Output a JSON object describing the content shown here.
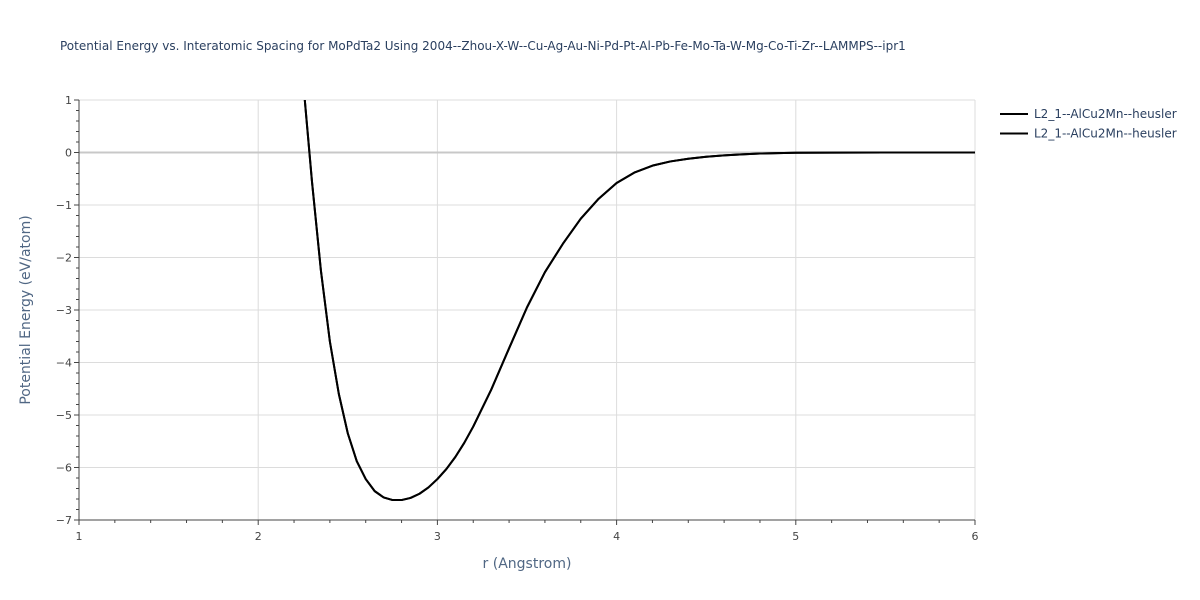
{
  "chart_data": {
    "type": "line",
    "title": "Potential Energy vs. Interatomic Spacing for MoPdTa2 Using 2004--Zhou-X-W--Cu-Ag-Au-Ni-Pd-Pt-Al-Pb-Fe-Mo-Ta-W-Mg-Co-Ti-Zr--LAMMPS--ipr1",
    "xlabel": "r (Angstrom)",
    "ylabel": "Potential Energy (eV/atom)",
    "xlim": [
      1,
      6
    ],
    "ylim": [
      -7,
      1
    ],
    "xticks": [
      1,
      2,
      3,
      4,
      5,
      6
    ],
    "yticks": [
      -7,
      -6,
      -5,
      -4,
      -3,
      -2,
      -1,
      0,
      1
    ],
    "xtick_labels": [
      "1",
      "2",
      "3",
      "4",
      "5",
      "6"
    ],
    "ytick_labels": [
      "−7",
      "−6",
      "−5",
      "−4",
      "−3",
      "−2",
      "−1",
      "0",
      "1"
    ],
    "grid": true,
    "legend_position": "top-right",
    "series": [
      {
        "name": "L2_1--AlCu2Mn--heusler",
        "color": "#000000",
        "x": [
          2.26,
          2.3,
          2.35,
          2.4,
          2.45,
          2.5,
          2.55,
          2.6,
          2.65,
          2.7,
          2.75,
          2.8,
          2.85,
          2.9,
          2.95,
          3.0,
          3.05,
          3.1,
          3.15,
          3.2,
          3.3,
          3.4,
          3.5,
          3.6,
          3.7,
          3.8,
          3.9,
          4.0,
          4.1,
          4.2,
          4.3,
          4.4,
          4.5,
          4.6,
          4.7,
          4.8,
          4.9,
          5.0,
          5.2,
          5.5,
          6.0
        ],
        "y": [
          1.0,
          -0.55,
          -2.25,
          -3.6,
          -4.6,
          -5.35,
          -5.88,
          -6.22,
          -6.45,
          -6.57,
          -6.62,
          -6.62,
          -6.58,
          -6.5,
          -6.38,
          -6.22,
          -6.03,
          -5.8,
          -5.53,
          -5.22,
          -4.52,
          -3.73,
          -2.95,
          -2.28,
          -1.74,
          -1.26,
          -0.88,
          -0.58,
          -0.38,
          -0.25,
          -0.17,
          -0.12,
          -0.08,
          -0.055,
          -0.035,
          -0.02,
          -0.012,
          -0.006,
          -0.002,
          0.0,
          0.0
        ]
      },
      {
        "name": "L2_1--AlCu2Mn--heusler",
        "color": "#000000",
        "x": [
          2.26,
          2.3,
          2.35,
          2.4,
          2.45,
          2.5,
          2.55,
          2.6,
          2.65,
          2.7,
          2.75,
          2.8,
          2.85,
          2.9,
          2.95,
          3.0,
          3.05,
          3.1,
          3.15,
          3.2,
          3.3,
          3.4,
          3.5,
          3.6,
          3.7,
          3.8,
          3.9,
          4.0,
          4.1,
          4.2,
          4.3,
          4.4,
          4.5,
          4.6,
          4.7,
          4.8,
          4.9,
          5.0,
          5.2,
          5.5,
          6.0
        ],
        "y": [
          1.0,
          -0.55,
          -2.25,
          -3.6,
          -4.6,
          -5.35,
          -5.88,
          -6.22,
          -6.45,
          -6.57,
          -6.62,
          -6.62,
          -6.58,
          -6.5,
          -6.38,
          -6.22,
          -6.03,
          -5.8,
          -5.53,
          -5.22,
          -4.52,
          -3.73,
          -2.95,
          -2.28,
          -1.74,
          -1.26,
          -0.88,
          -0.58,
          -0.38,
          -0.25,
          -0.17,
          -0.12,
          -0.08,
          -0.055,
          -0.035,
          -0.02,
          -0.012,
          -0.006,
          -0.002,
          0.0,
          0.0
        ]
      }
    ]
  }
}
